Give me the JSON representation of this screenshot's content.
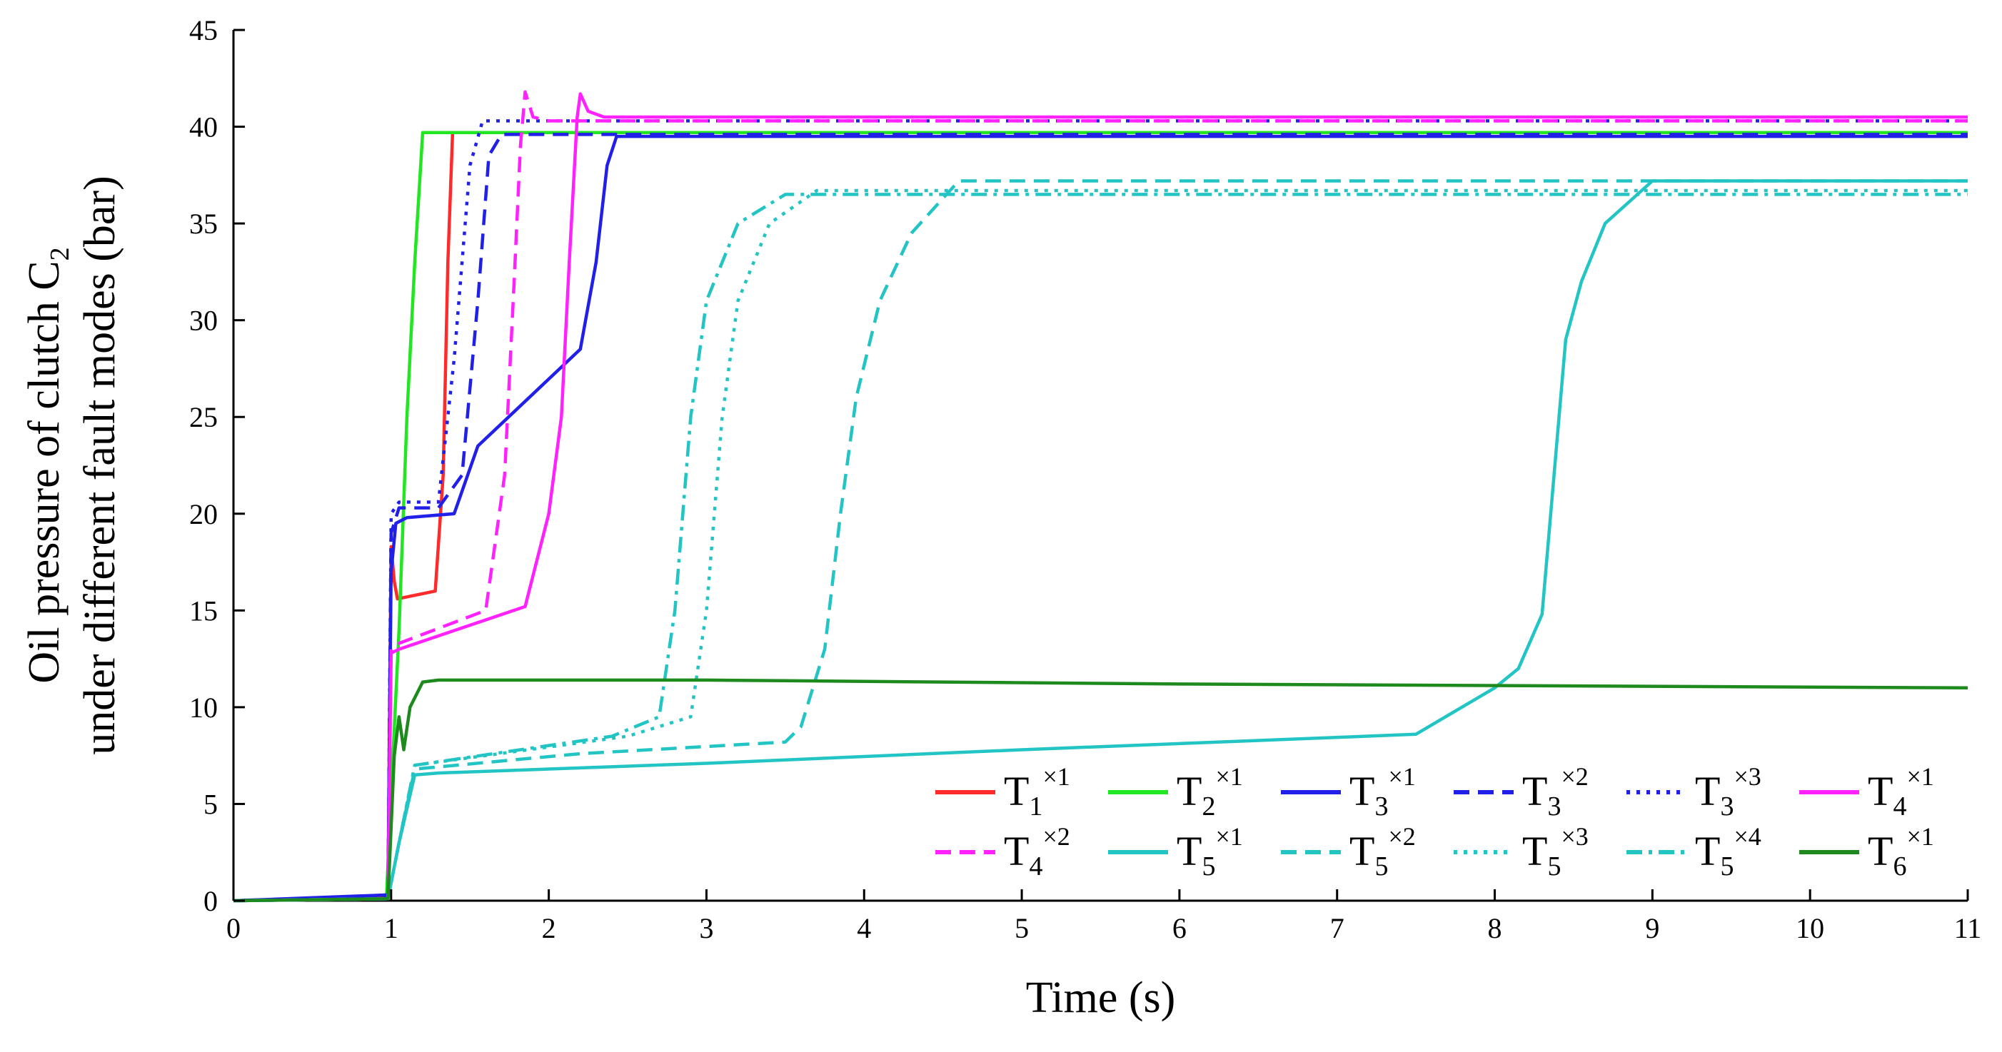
{
  "chart_data": {
    "type": "line",
    "xlabel": "Time (s)",
    "ylabel_line1": "Oil pressure of clutch C",
    "ylabel_line1_sub": "2",
    "ylabel_line2": "under different fault modes (bar)",
    "xlim": [
      0,
      11
    ],
    "ylim": [
      0,
      45
    ],
    "xticks": [
      0,
      1,
      2,
      3,
      4,
      5,
      6,
      7,
      8,
      9,
      10,
      11
    ],
    "yticks": [
      0,
      5,
      10,
      15,
      20,
      25,
      30,
      35,
      40,
      45
    ],
    "series": [
      {
        "name": "T1 x1",
        "base": "T",
        "sub": "1",
        "sup": "×1",
        "color": "#ff2a2a",
        "dash": "solid",
        "points": [
          [
            0,
            0
          ],
          [
            0.98,
            0.2
          ],
          [
            1.0,
            18.3
          ],
          [
            1.02,
            16.5
          ],
          [
            1.04,
            15.6
          ],
          [
            1.28,
            16.0
          ],
          [
            1.33,
            22
          ],
          [
            1.36,
            33
          ],
          [
            1.39,
            39.7
          ],
          [
            11,
            39.7
          ]
        ]
      },
      {
        "name": "T2 x1",
        "base": "T",
        "sub": "2",
        "sup": "×1",
        "color": "#22e622",
        "dash": "solid",
        "points": [
          [
            0,
            0
          ],
          [
            0.97,
            0.1
          ],
          [
            1.0,
            5.5
          ],
          [
            1.05,
            14
          ],
          [
            1.1,
            25
          ],
          [
            1.15,
            33
          ],
          [
            1.2,
            39.7
          ],
          [
            11,
            39.7
          ]
        ]
      },
      {
        "name": "T3 x1",
        "base": "T",
        "sub": "3",
        "sup": "×1",
        "color": "#2020e8",
        "dash": "solid",
        "points": [
          [
            0,
            0
          ],
          [
            0.98,
            0.3
          ],
          [
            1.0,
            17
          ],
          [
            1.03,
            19.5
          ],
          [
            1.1,
            19.8
          ],
          [
            1.4,
            20
          ],
          [
            1.55,
            23.5
          ],
          [
            2.2,
            28.5
          ],
          [
            2.3,
            33
          ],
          [
            2.37,
            38
          ],
          [
            2.43,
            39.5
          ],
          [
            11,
            39.5
          ]
        ]
      },
      {
        "name": "T3 x2",
        "base": "T",
        "sub": "3",
        "sup": "×2",
        "color": "#2020e8",
        "dash": "dashed",
        "points": [
          [
            0,
            0
          ],
          [
            0.5,
            0.1
          ],
          [
            0.98,
            0.3
          ],
          [
            1.0,
            19
          ],
          [
            1.05,
            20.3
          ],
          [
            1.3,
            20.3
          ],
          [
            1.45,
            22
          ],
          [
            1.55,
            31
          ],
          [
            1.62,
            38.5
          ],
          [
            1.7,
            39.6
          ],
          [
            11,
            39.6
          ]
        ]
      },
      {
        "name": "T3 x3",
        "base": "T",
        "sub": "3",
        "sup": "×3",
        "color": "#2020e8",
        "dash": "dotted",
        "points": [
          [
            0,
            0
          ],
          [
            0.98,
            0.2
          ],
          [
            1.0,
            20
          ],
          [
            1.05,
            20.6
          ],
          [
            1.3,
            20.6
          ],
          [
            1.4,
            28
          ],
          [
            1.5,
            38
          ],
          [
            1.58,
            40.3
          ],
          [
            2.0,
            40.3
          ],
          [
            11,
            40.3
          ]
        ]
      },
      {
        "name": "T4 x1",
        "base": "T",
        "sub": "4",
        "sup": "×1",
        "color": "#ff22ff",
        "dash": "solid",
        "points": [
          [
            0,
            0
          ],
          [
            0.98,
            0.1
          ],
          [
            1.0,
            12.8
          ],
          [
            1.05,
            13
          ],
          [
            1.85,
            15.2
          ],
          [
            2.0,
            20
          ],
          [
            2.08,
            25
          ],
          [
            2.13,
            33
          ],
          [
            2.18,
            40.5
          ],
          [
            2.2,
            41.7
          ],
          [
            2.25,
            40.8
          ],
          [
            2.35,
            40.5
          ],
          [
            11,
            40.5
          ]
        ]
      },
      {
        "name": "T4 x2",
        "base": "T",
        "sub": "4",
        "sup": "×2",
        "color": "#ff22ff",
        "dash": "dashed",
        "points": [
          [
            0,
            0
          ],
          [
            0.98,
            0.1
          ],
          [
            1.0,
            13
          ],
          [
            1.05,
            13.3
          ],
          [
            1.6,
            15
          ],
          [
            1.72,
            22
          ],
          [
            1.78,
            32
          ],
          [
            1.82,
            39
          ],
          [
            1.85,
            41.8
          ],
          [
            1.9,
            40.5
          ],
          [
            2.0,
            40.3
          ],
          [
            11,
            40.3
          ]
        ]
      },
      {
        "name": "T5 x1",
        "base": "T",
        "sub": "5",
        "sup": "×1",
        "color": "#22c4c4",
        "dash": "solid",
        "points": [
          [
            0,
            0
          ],
          [
            0.98,
            0.1
          ],
          [
            1.05,
            3
          ],
          [
            1.15,
            6.5
          ],
          [
            1.3,
            6.6
          ],
          [
            3,
            7.1
          ],
          [
            5,
            7.8
          ],
          [
            7.5,
            8.6
          ],
          [
            8.0,
            11
          ],
          [
            8.15,
            12
          ],
          [
            8.3,
            14.8
          ],
          [
            8.45,
            29
          ],
          [
            8.55,
            32
          ],
          [
            8.7,
            35
          ],
          [
            9.0,
            37.2
          ],
          [
            11,
            37.2
          ]
        ]
      },
      {
        "name": "T5 x2",
        "base": "T",
        "sub": "5",
        "sup": "×2",
        "color": "#22c4c4",
        "dash": "dashed",
        "points": [
          [
            0,
            0
          ],
          [
            0.98,
            0.1
          ],
          [
            1.05,
            3
          ],
          [
            1.15,
            6.8
          ],
          [
            2.2,
            7.6
          ],
          [
            3.5,
            8.2
          ],
          [
            3.6,
            9
          ],
          [
            3.75,
            13
          ],
          [
            3.85,
            20
          ],
          [
            3.95,
            26
          ],
          [
            4.1,
            31
          ],
          [
            4.3,
            34.5
          ],
          [
            4.6,
            37.2
          ],
          [
            11,
            37.2
          ]
        ]
      },
      {
        "name": "T5 x3",
        "base": "T",
        "sub": "5",
        "sup": "×3",
        "color": "#22c4c4",
        "dash": "dotted",
        "points": [
          [
            0,
            0
          ],
          [
            0.98,
            0.1
          ],
          [
            1.05,
            3
          ],
          [
            1.15,
            7
          ],
          [
            2.5,
            8.5
          ],
          [
            2.9,
            9.5
          ],
          [
            3.0,
            15
          ],
          [
            3.1,
            25
          ],
          [
            3.2,
            31
          ],
          [
            3.4,
            35
          ],
          [
            3.7,
            36.7
          ],
          [
            11,
            36.7
          ]
        ]
      },
      {
        "name": "T5 x4",
        "base": "T",
        "sub": "5",
        "sup": "×4",
        "color": "#22c4c4",
        "dash": "dashdot",
        "points": [
          [
            0,
            0
          ],
          [
            0.98,
            0.1
          ],
          [
            1.05,
            3
          ],
          [
            1.15,
            7
          ],
          [
            2.4,
            8.5
          ],
          [
            2.7,
            9.5
          ],
          [
            2.8,
            15
          ],
          [
            2.9,
            25
          ],
          [
            3.0,
            31
          ],
          [
            3.2,
            35
          ],
          [
            3.5,
            36.5
          ],
          [
            11,
            36.5
          ]
        ]
      },
      {
        "name": "T6 x1",
        "base": "T",
        "sub": "6",
        "sup": "×1",
        "color": "#1e8a1e",
        "dash": "solid",
        "points": [
          [
            0,
            0
          ],
          [
            0.98,
            0.1
          ],
          [
            1.02,
            7.5
          ],
          [
            1.05,
            9.5
          ],
          [
            1.08,
            7.8
          ],
          [
            1.12,
            10
          ],
          [
            1.2,
            11.3
          ],
          [
            1.3,
            11.4
          ],
          [
            3.0,
            11.4
          ],
          [
            6,
            11.2
          ],
          [
            11,
            11.0
          ]
        ]
      }
    ]
  }
}
